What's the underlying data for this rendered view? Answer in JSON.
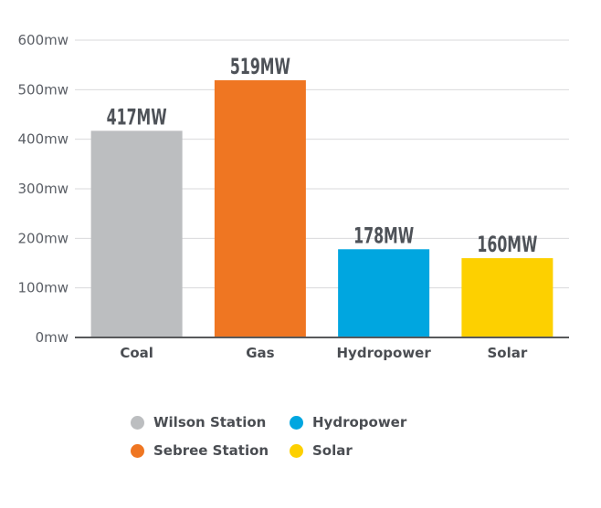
{
  "chart_data": {
    "type": "bar",
    "categories": [
      "Coal",
      "Gas",
      "Hydropower",
      "Solar"
    ],
    "values": [
      417,
      519,
      178,
      160
    ],
    "data_labels": [
      "417MW",
      "519MW",
      "178MW",
      "160MW"
    ],
    "bar_colors": [
      "#bcbec0",
      "#ef7622",
      "#00a6e0",
      "#fdd000"
    ],
    "yticks": [
      0,
      100,
      200,
      300,
      400,
      500,
      600
    ],
    "ytick_labels": [
      "0mw",
      "100mw",
      "200mw",
      "300mw",
      "400mw",
      "500mw",
      "600mw"
    ],
    "ylim": [
      0,
      600
    ],
    "grid": true,
    "legend_position": "bottom",
    "legend": [
      {
        "label": "Wilson Station",
        "color": "#bcbec0"
      },
      {
        "label": "Hydropower",
        "color": "#00a6e0"
      },
      {
        "label": "Sebree Station",
        "color": "#ef7622"
      },
      {
        "label": "Solar",
        "color": "#fdd000"
      }
    ]
  }
}
